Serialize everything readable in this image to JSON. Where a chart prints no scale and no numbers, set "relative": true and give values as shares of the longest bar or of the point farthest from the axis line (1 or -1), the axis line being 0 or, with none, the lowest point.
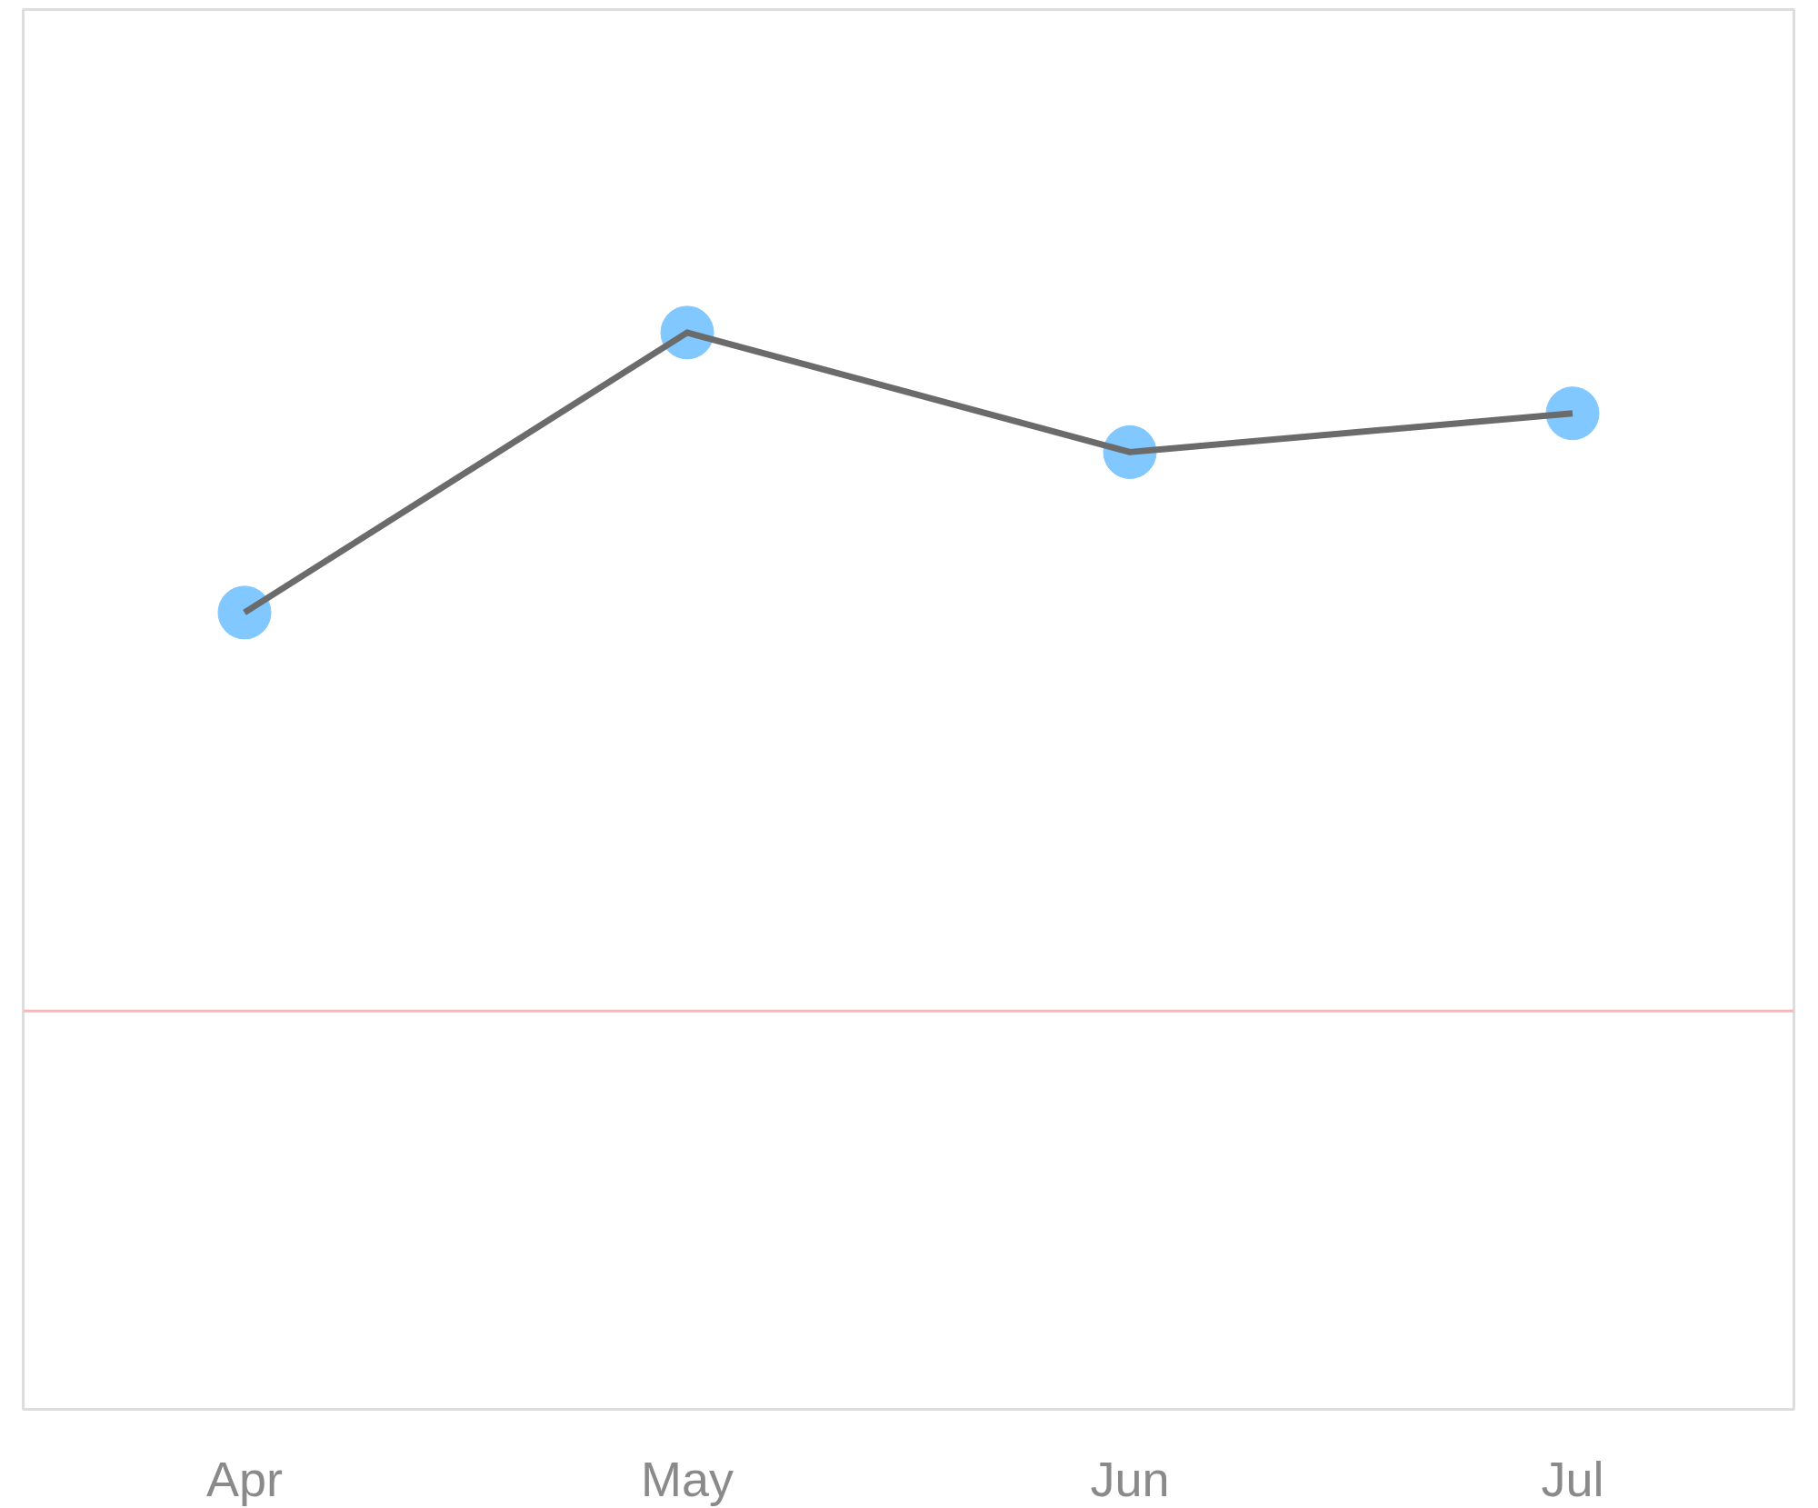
{
  "chart_data": {
    "type": "line",
    "relative": true,
    "categories": [
      "Apr",
      "May",
      "Jun",
      "Jul"
    ],
    "series": [
      {
        "color": "#6b6b6b",
        "values": [
          0.74,
          1,
          0.889,
          0.925
        ]
      },
      {
        "type": "scatter",
        "color": "#80c8ff",
        "marker": "circle",
        "values": [
          0.74,
          1,
          0.889,
          0.925
        ]
      }
    ],
    "grid": false,
    "ref_lines": [
      {
        "axis": "y",
        "value": 0.37,
        "color": "#ffb3b3"
      }
    ]
  }
}
